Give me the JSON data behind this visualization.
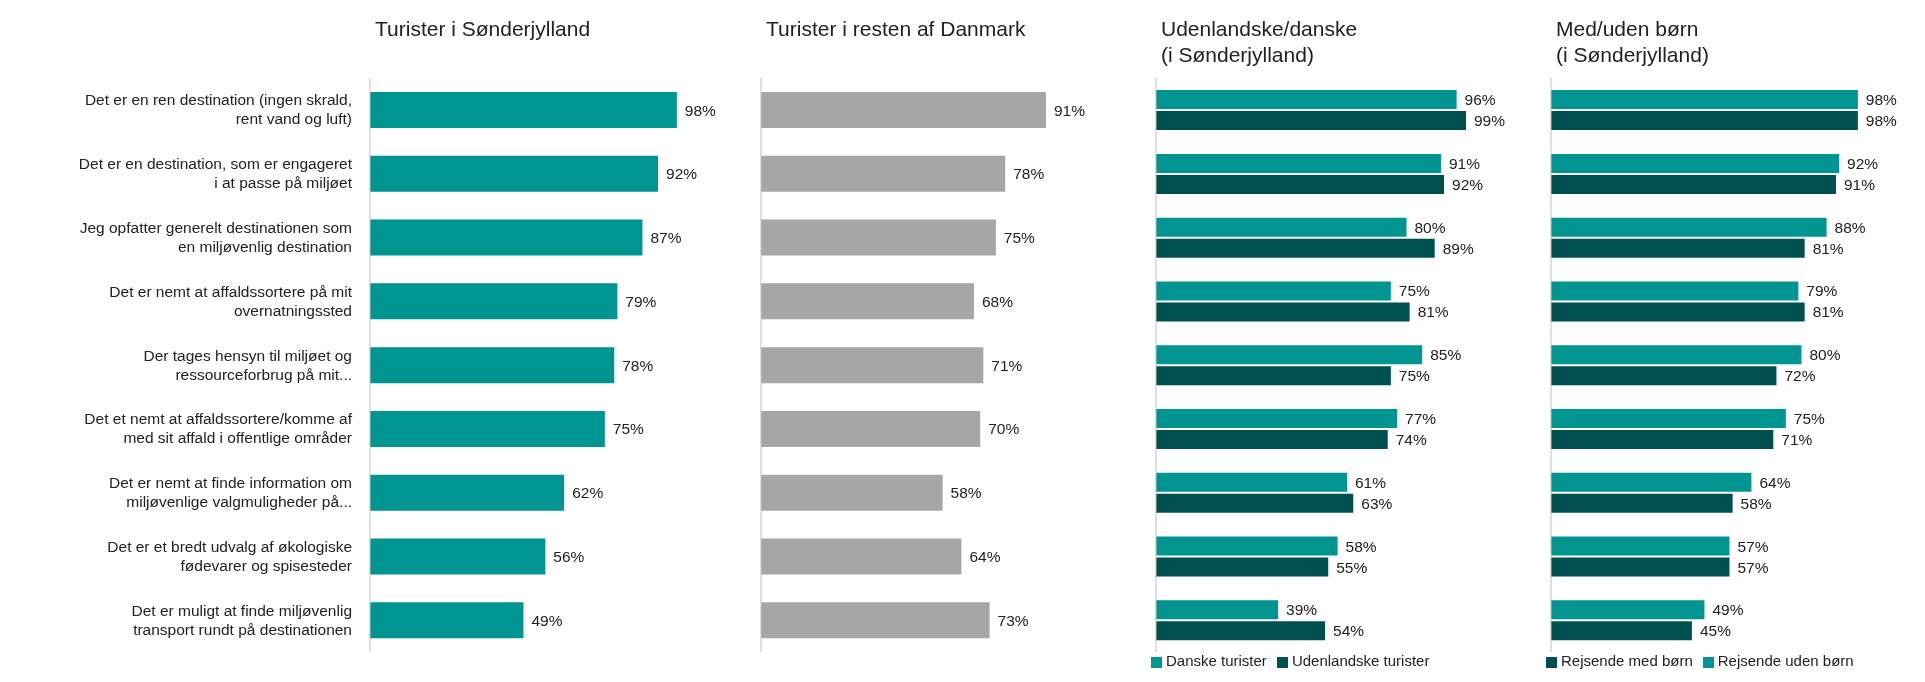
{
  "chart_data": [
    {
      "type": "bar",
      "orientation": "horizontal",
      "title": "Turister i Sønderjylland",
      "tick_labels": "y",
      "color": "#009591",
      "categories": [
        "Det er en ren destination (ingen skrald, rent vand og luft)",
        "Det er en destination, som er engageret i at passe på miljøet",
        "Jeg opfatter generelt destinationen som en miljøvenlig destination",
        "Det er nemt at affaldssortere på mit overnatningssted",
        "Der tages hensyn til miljøet og ressourceforbrug på mit...",
        "Det et nemt at affaldssortere/komme af med sit affald i offentlige områder",
        "Det er nemt at finde information om miljøvenlige valgmuligheder på...",
        "Det er et bredt udvalg af økologiske fødevarer og spisesteder",
        "Det er muligt at finde miljøvenlig transport rundt på destinationen"
      ],
      "values": [
        98,
        92,
        87,
        79,
        78,
        75,
        62,
        56,
        49
      ],
      "value_labels": [
        "98%",
        "92%",
        "87%",
        "79%",
        "78%",
        "75%",
        "62%",
        "56%",
        "49%"
      ]
    },
    {
      "type": "bar",
      "orientation": "horizontal",
      "title": "Turister i resten af Danmark",
      "tick_labels": false,
      "color": "#a6a6a6",
      "categories": [
        null,
        null,
        null,
        null,
        null,
        null,
        null,
        null,
        null
      ],
      "values": [
        91,
        78,
        75,
        68,
        71,
        70,
        58,
        64,
        73
      ],
      "value_labels": [
        "91%",
        "78%",
        "75%",
        "68%",
        "71%",
        "70%",
        "58%",
        "64%",
        "73%"
      ]
    },
    {
      "type": "bar",
      "orientation": "horizontal",
      "title": "Udenlandske/danske\n(i Sønderjylland)",
      "tick_labels": false,
      "legend": "bottom left",
      "categories": [
        null,
        null,
        null,
        null,
        null,
        null,
        null,
        null,
        null
      ],
      "series": [
        {
          "name": "Danske turister",
          "color": "#009591",
          "values": [
            96,
            91,
            80,
            75,
            85,
            77,
            61,
            58,
            39
          ],
          "value_labels": [
            "96%",
            "91%",
            "80%",
            "75%",
            "85%",
            "77%",
            "61%",
            "58%",
            "39%"
          ]
        },
        {
          "name": "Udenlandske turister",
          "color": "#00504f",
          "values": [
            99,
            92,
            89,
            81,
            75,
            74,
            63,
            55,
            54
          ],
          "value_labels": [
            "99%",
            "92%",
            "89%",
            "81%",
            "75%",
            "74%",
            "63%",
            "55%",
            "54%"
          ]
        }
      ]
    },
    {
      "type": "bar",
      "orientation": "horizontal",
      "title": "Med/uden børn\n(i Sønderjylland)",
      "tick_labels": false,
      "legend": "bottom left",
      "categories": [
        null,
        null,
        null,
        null,
        null,
        null,
        null,
        null,
        null
      ],
      "series": [
        {
          "name": "Rejsende uden børn",
          "color": "#009591",
          "values": [
            98,
            92,
            88,
            79,
            80,
            75,
            64,
            57,
            49
          ],
          "value_labels": [
            "98%",
            "92%",
            "88%",
            "79%",
            "80%",
            "75%",
            "64%",
            "57%",
            "49%"
          ]
        },
        {
          "name": "Rejsende med børn",
          "color": "#00504f",
          "values": [
            98,
            91,
            81,
            81,
            72,
            71,
            58,
            57,
            45
          ],
          "value_labels": [
            "98%",
            "91%",
            "81%",
            "81%",
            "72%",
            "71%",
            "58%",
            "57%",
            "45%"
          ]
        }
      ]
    }
  ]
}
